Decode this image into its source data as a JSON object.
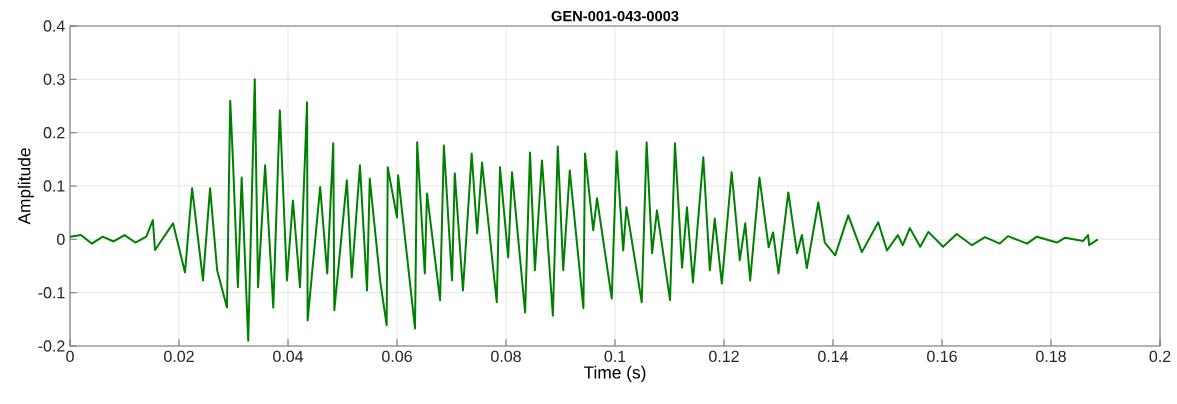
{
  "chart_data": {
    "type": "line",
    "title": "GEN-001-043-0003",
    "xlabel": "Time (s)",
    "ylabel": "Amplitude",
    "xlim": [
      0,
      0.2
    ],
    "ylim": [
      -0.2,
      0.4
    ],
    "xticks": [
      0,
      0.02,
      0.04,
      0.06,
      0.08,
      0.1,
      0.12,
      0.14,
      0.16,
      0.18,
      0.2
    ],
    "yticks": [
      -0.2,
      -0.1,
      0,
      0.1,
      0.2,
      0.3,
      0.4
    ],
    "grid": true,
    "marker": "none",
    "line_style": "solid",
    "series": [
      {
        "color": "#008000",
        "x": [
          0,
          0.002,
          0.004,
          0.006,
          0.008,
          0.01,
          0.012,
          0.014,
          0.0152,
          0.0156,
          0.0189,
          0.0211,
          0.0224,
          0.0244,
          0.0257,
          0.027,
          0.0288,
          0.0294,
          0.0299,
          0.0308,
          0.0315,
          0.0327,
          0.0339,
          0.0345,
          0.0358,
          0.0373,
          0.0385,
          0.0398,
          0.0409,
          0.0422,
          0.0435,
          0.0436,
          0.0459,
          0.0472,
          0.0483,
          0.0485,
          0.0508,
          0.0517,
          0.0532,
          0.0545,
          0.055,
          0.0569,
          0.0581,
          0.0583,
          0.06,
          0.0602,
          0.0633,
          0.0637,
          0.0651,
          0.0655,
          0.0679,
          0.0686,
          0.0701,
          0.0706,
          0.0721,
          0.0737,
          0.0747,
          0.0756,
          0.0783,
          0.0789,
          0.0804,
          0.0811,
          0.0835,
          0.0844,
          0.0853,
          0.0866,
          0.0886,
          0.0895,
          0.0905,
          0.0917,
          0.0942,
          0.0945,
          0.096,
          0.0967,
          0.0994,
          0.1003,
          0.1015,
          0.1021,
          0.1049,
          0.1058,
          0.1068,
          0.1077,
          0.1101,
          0.111,
          0.1123,
          0.1132,
          0.1143,
          0.1162,
          0.1174,
          0.1183,
          0.1196,
          0.1214,
          0.1229,
          0.1239,
          0.1248,
          0.1265,
          0.1282,
          0.129,
          0.13,
          0.1318,
          0.1334,
          0.1343,
          0.1352,
          0.1373,
          0.1385,
          0.1404,
          0.1428,
          0.1453,
          0.1483,
          0.1499,
          0.1519,
          0.1528,
          0.1541,
          0.156,
          0.1575,
          0.1602,
          0.1627,
          0.1655,
          0.1679,
          0.1706,
          0.1721,
          0.1756,
          0.1774,
          0.1811,
          0.1826,
          0.1859,
          0.1868,
          0.187,
          0.1886
        ],
        "values": [
          0.005,
          0.008,
          -0.008,
          0.005,
          -0.004,
          0.008,
          -0.006,
          0.005,
          0.036,
          -0.02,
          0.03,
          -0.062,
          0.096,
          -0.077,
          0.096,
          -0.058,
          -0.128,
          0.26,
          0.148,
          -0.09,
          0.116,
          -0.19,
          0.3,
          -0.09,
          0.139,
          -0.128,
          0.242,
          -0.077,
          0.073,
          -0.09,
          0.257,
          -0.152,
          0.098,
          -0.064,
          0.18,
          -0.133,
          0.111,
          -0.071,
          0.139,
          -0.096,
          0.114,
          -0.077,
          -0.161,
          0.135,
          0.041,
          0.12,
          -0.167,
          0.182,
          -0.064,
          0.086,
          -0.114,
          0.176,
          -0.077,
          0.124,
          -0.096,
          0.161,
          0.011,
          0.144,
          -0.118,
          0.135,
          -0.034,
          0.126,
          -0.137,
          0.163,
          -0.058,
          0.148,
          -0.143,
          0.174,
          -0.058,
          0.129,
          -0.129,
          0.161,
          0.017,
          0.077,
          -0.111,
          0.165,
          -0.021,
          0.06,
          -0.118,
          0.182,
          -0.026,
          0.054,
          -0.114,
          0.18,
          -0.053,
          0.06,
          -0.081,
          0.154,
          -0.058,
          0.039,
          -0.083,
          0.126,
          -0.039,
          0.03,
          -0.077,
          0.116,
          -0.015,
          0.013,
          -0.064,
          0.088,
          -0.026,
          0.008,
          -0.054,
          0.069,
          -0.006,
          -0.03,
          0.045,
          -0.024,
          0.032,
          -0.021,
          0.008,
          -0.011,
          0.021,
          -0.014,
          0.014,
          -0.014,
          0.01,
          -0.011,
          0.004,
          -0.008,
          0.006,
          -0.008,
          0.005,
          -0.006,
          0.003,
          -0.003,
          0.008,
          -0.011,
          0
        ]
      }
    ]
  }
}
